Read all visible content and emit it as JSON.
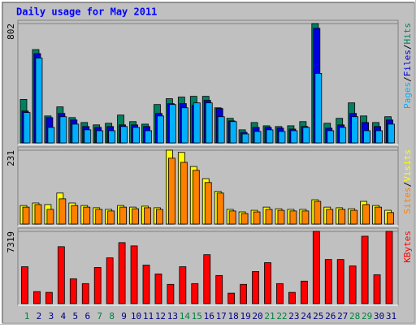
{
  "chart_data": [
    {
      "type": "bar",
      "title": "Daily usage for May 2011",
      "legend_separator": "/",
      "ylim": [
        0,
        802
      ],
      "yticks": [
        802
      ],
      "series": [
        {
          "name": "Hits",
          "color": "#008060",
          "values": [
            292,
            627,
            181,
            242,
            170,
            137,
            121,
            132,
            187,
            143,
            126,
            258,
            297,
            308,
            313,
            313,
            236,
            165,
            88,
            137,
            115,
            110,
            115,
            143,
            802,
            132,
            165,
            269,
            181,
            137,
            176
          ]
        },
        {
          "name": "Files",
          "color": "#0000e0",
          "values": [
            214,
            600,
            170,
            198,
            154,
            110,
            104,
            110,
            121,
            121,
            110,
            198,
            264,
            264,
            253,
            286,
            231,
            148,
            71,
            104,
            104,
            99,
            93,
            110,
            770,
            99,
            121,
            198,
            137,
            110,
            154
          ]
        },
        {
          "name": "Pages",
          "color": "#00b0ff",
          "values": [
            204,
            570,
            104,
            176,
            126,
            88,
            82,
            82,
            110,
            104,
            82,
            181,
            258,
            236,
            269,
            269,
            176,
            143,
            60,
            77,
            88,
            77,
            82,
            104,
            467,
            82,
            104,
            176,
            82,
            82,
            126
          ]
        }
      ]
    },
    {
      "type": "bar",
      "ylim": [
        0,
        231
      ],
      "yticks": [
        231
      ],
      "series": [
        {
          "name": "Visits",
          "color": "#ffff00",
          "values": [
            58,
            66,
            61,
            97,
            66,
            58,
            51,
            46,
            58,
            53,
            56,
            51,
            231,
            224,
            180,
            142,
            102,
            46,
            38,
            43,
            53,
            48,
            46,
            46,
            76,
            53,
            51,
            48,
            71,
            58,
            43
          ]
        },
        {
          "name": "Sites",
          "color": "#ff8000",
          "values": [
            53,
            61,
            46,
            79,
            58,
            53,
            46,
            41,
            53,
            48,
            51,
            46,
            206,
            193,
            168,
            130,
            97,
            41,
            33,
            38,
            46,
            43,
            41,
            41,
            71,
            46,
            46,
            43,
            61,
            53,
            36
          ]
        }
      ]
    },
    {
      "type": "bar",
      "ylim": [
        0,
        7319
      ],
      "yticks": [
        7319
      ],
      "categories": [
        "1",
        "2",
        "3",
        "4",
        "5",
        "6",
        "7",
        "8",
        "9",
        "10",
        "11",
        "12",
        "13",
        "14",
        "15",
        "16",
        "17",
        "18",
        "19",
        "20",
        "21",
        "22",
        "23",
        "24",
        "25",
        "26",
        "27",
        "28",
        "29",
        "30",
        "31"
      ],
      "category_colors": [
        "#008040",
        "#000080",
        "#000080",
        "#000080",
        "#000080",
        "#000080",
        "#008040",
        "#008040",
        "#000080",
        "#000080",
        "#000080",
        "#000080",
        "#000080",
        "#008040",
        "#008040",
        "#000080",
        "#000080",
        "#000080",
        "#000080",
        "#000080",
        "#008040",
        "#008040",
        "#000080",
        "#000080",
        "#000080",
        "#000080",
        "#000080",
        "#008040",
        "#008040",
        "#000080",
        "#000080"
      ],
      "series": [
        {
          "name": "KBytes",
          "color": "#ff0000",
          "values": [
            3740,
            1220,
            1140,
            5770,
            2520,
            2030,
            3660,
            4640,
            6180,
            5850,
            3900,
            3010,
            1950,
            3740,
            2030,
            4960,
            2850,
            1060,
            1950,
            3250,
            4150,
            2030,
            1140,
            2280,
            7319,
            4470,
            4470,
            3820,
            6830,
            2930,
            7319
          ]
        }
      ]
    }
  ]
}
